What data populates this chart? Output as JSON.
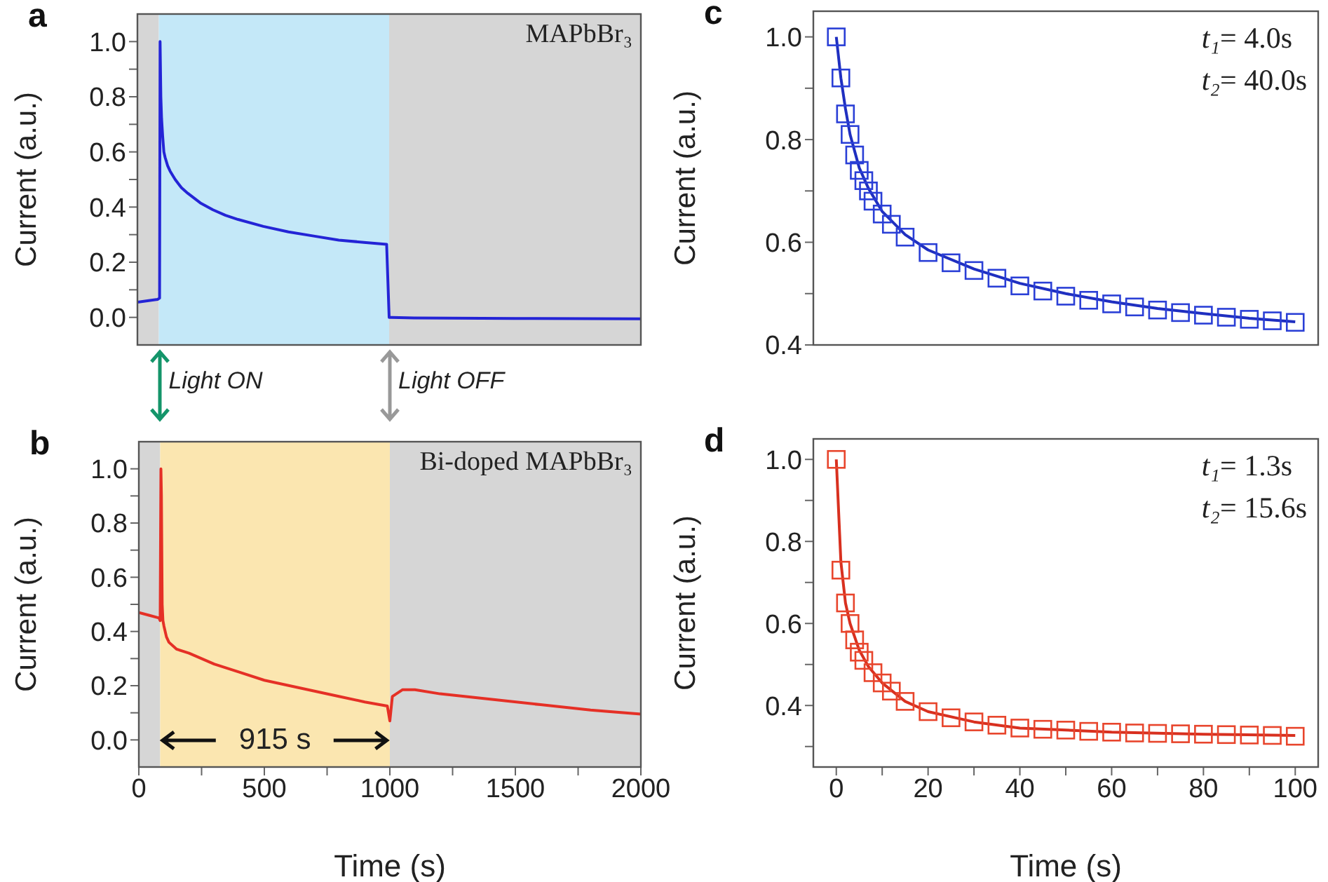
{
  "chart_data": [
    {
      "type": "line",
      "title": "a",
      "subtitle": "MAPbBr₃",
      "ylabel": "Current (a.u.)",
      "tick_labels": "y",
      "xlim": [
        0,
        2000
      ],
      "ylim": [
        -0.1,
        1.1
      ],
      "yticks": [
        {
          "value": 0,
          "label": "0.0"
        },
        {
          "value": 0.1,
          "label": null
        },
        0.2,
        {
          "value": 0.3,
          "label": null
        },
        0.4,
        {
          "value": 0.5,
          "label": null
        },
        0.6,
        {
          "value": 0.7,
          "label": null
        },
        0.8,
        {
          "value": 0.9,
          "label": null
        },
        {
          "value": 1,
          "label": "1.0"
        }
      ],
      "bands": [
        {
          "axis": "x",
          "from": 0,
          "to": 85,
          "color": "#d6d6d6"
        },
        {
          "axis": "x",
          "from": 85,
          "to": 1000,
          "color": "#c4e8f8"
        },
        {
          "axis": "x",
          "from": 1000,
          "to": 2000,
          "color": "#d6d6d6"
        }
      ],
      "x": [
        0,
        40,
        80,
        88,
        90,
        93,
        96,
        100,
        105,
        110,
        120,
        130,
        150,
        175,
        200,
        250,
        300,
        350,
        400,
        500,
        600,
        700,
        800,
        900,
        990,
        1000,
        1010,
        1100,
        1500,
        2000
      ],
      "series": [
        {
          "color": "#2424d6",
          "values": [
            0.055,
            0.06,
            0.065,
            0.07,
            1.0,
            0.8,
            0.72,
            0.66,
            0.6,
            0.58,
            0.55,
            0.53,
            0.5,
            0.47,
            0.45,
            0.415,
            0.39,
            0.37,
            0.355,
            0.33,
            0.31,
            0.295,
            0.28,
            0.272,
            0.265,
            0.0,
            0.0,
            -0.002,
            -0.004,
            -0.005
          ]
        }
      ]
    },
    {
      "type": "line",
      "title": "b",
      "subtitle": "Bi-doped MAPbBr₃",
      "xlabel": "Time (s)",
      "ylabel": "Current (a.u.)",
      "xlim": [
        0,
        2000
      ],
      "xticks": [
        0,
        {
          "value": 250,
          "label": null
        },
        500,
        {
          "value": 750,
          "label": null
        },
        1000,
        {
          "value": 1250,
          "label": null
        },
        1500,
        {
          "value": 1750,
          "label": null
        },
        2000
      ],
      "ylim": [
        -0.1,
        1.1
      ],
      "yticks": [
        {
          "value": 0,
          "label": "0.0"
        },
        {
          "value": 0.1,
          "label": null
        },
        0.2,
        {
          "value": 0.3,
          "label": null
        },
        0.4,
        {
          "value": 0.5,
          "label": null
        },
        0.6,
        {
          "value": 0.7,
          "label": null
        },
        0.8,
        {
          "value": 0.9,
          "label": null
        },
        {
          "value": 1,
          "label": "1.0"
        }
      ],
      "bands": [
        {
          "axis": "x",
          "from": 0,
          "to": 85,
          "color": "#d6d6d6"
        },
        {
          "axis": "x",
          "from": 85,
          "to": 1000,
          "color": "#fbe6b0",
          "label": "915 s"
        },
        {
          "axis": "x",
          "from": 1000,
          "to": 2000,
          "color": "#d6d6d6"
        }
      ],
      "annotations": [
        "Light ON",
        "Light OFF"
      ],
      "x": [
        0,
        40,
        80,
        85,
        88,
        90,
        93,
        96,
        100,
        110,
        120,
        150,
        200,
        300,
        400,
        500,
        600,
        700,
        800,
        900,
        990,
        1000,
        1010,
        1050,
        1100,
        1200,
        1400,
        1600,
        1800,
        2000
      ],
      "series": [
        {
          "color": "#e53026",
          "values": [
            0.47,
            0.46,
            0.45,
            0.44,
            1.0,
            0.9,
            0.5,
            0.44,
            0.42,
            0.38,
            0.36,
            0.335,
            0.32,
            0.28,
            0.25,
            0.22,
            0.2,
            0.18,
            0.16,
            0.14,
            0.125,
            0.07,
            0.16,
            0.185,
            0.185,
            0.17,
            0.15,
            0.13,
            0.11,
            0.095
          ]
        }
      ]
    },
    {
      "type": "scatter",
      "title": "c",
      "ylabel": "Current (a.u.)",
      "tick_labels": "y",
      "annotations": [
        "t₁= 4.0s",
        "t₂= 40.0s"
      ],
      "xlim": [
        -5,
        105
      ],
      "ylim": [
        0.4,
        1.05
      ],
      "yticks": [
        0.4,
        {
          "value": 0.5,
          "label": null
        },
        0.6,
        {
          "value": 0.7,
          "label": null
        },
        0.8,
        {
          "value": 0.9,
          "label": null
        },
        {
          "value": 1,
          "label": "1.0"
        }
      ],
      "series": [
        {
          "marker": "square",
          "color": "#2a3fd6",
          "x": [
            0,
            1,
            2,
            3,
            4,
            5,
            6,
            7,
            8,
            10,
            12,
            15,
            20,
            25,
            30,
            35,
            40,
            45,
            50,
            55,
            60,
            65,
            70,
            75,
            80,
            85,
            90,
            95,
            100
          ],
          "values": [
            1.0,
            0.92,
            0.85,
            0.81,
            0.77,
            0.74,
            0.72,
            0.7,
            0.68,
            0.655,
            0.635,
            0.61,
            0.58,
            0.56,
            0.545,
            0.53,
            0.515,
            0.505,
            0.495,
            0.487,
            0.48,
            0.474,
            0.468,
            0.463,
            0.458,
            0.454,
            0.45,
            0.447,
            0.444
          ]
        },
        {
          "type": "line",
          "color": "#1f2fc0",
          "x": [
            0,
            1,
            2,
            3,
            5,
            7,
            10,
            15,
            20,
            30,
            40,
            50,
            60,
            70,
            80,
            90,
            100
          ],
          "values": [
            1.0,
            0.92,
            0.86,
            0.81,
            0.745,
            0.705,
            0.66,
            0.615,
            0.585,
            0.548,
            0.52,
            0.5,
            0.484,
            0.471,
            0.461,
            0.452,
            0.445
          ]
        }
      ]
    },
    {
      "type": "scatter",
      "title": "d",
      "xlabel": "Time (s)",
      "ylabel": "Current (a.u.)",
      "annotations": [
        "t₁= 1.3s",
        "t₂= 15.6s"
      ],
      "xlim": [
        -5,
        105
      ],
      "xticks": [
        0,
        {
          "value": 10,
          "label": null
        },
        20,
        {
          "value": 30,
          "label": null
        },
        40,
        {
          "value": 50,
          "label": null
        },
        60,
        {
          "value": 70,
          "label": null
        },
        80,
        {
          "value": 90,
          "label": null
        },
        100
      ],
      "ylim": [
        0.25,
        1.05
      ],
      "yticks": [
        {
          "value": 0.3,
          "label": null
        },
        0.4,
        {
          "value": 0.5,
          "label": null
        },
        0.6,
        {
          "value": 0.7,
          "label": null
        },
        0.8,
        {
          "value": 0.9,
          "label": null
        },
        {
          "value": 1,
          "label": "1.0"
        }
      ],
      "series": [
        {
          "marker": "square",
          "color": "#e8452c",
          "x": [
            0,
            1,
            2,
            3,
            4,
            5,
            6,
            8,
            10,
            12,
            15,
            20,
            25,
            30,
            35,
            40,
            45,
            50,
            55,
            60,
            65,
            70,
            75,
            80,
            85,
            90,
            95,
            100
          ],
          "values": [
            1.0,
            0.73,
            0.65,
            0.6,
            0.56,
            0.53,
            0.51,
            0.48,
            0.455,
            0.435,
            0.41,
            0.385,
            0.37,
            0.36,
            0.352,
            0.345,
            0.342,
            0.34,
            0.337,
            0.335,
            0.333,
            0.332,
            0.331,
            0.33,
            0.329,
            0.328,
            0.327,
            0.325
          ]
        },
        {
          "type": "line",
          "color": "#d8301f",
          "x": [
            0,
            1,
            2,
            3,
            5,
            7,
            10,
            15,
            20,
            30,
            40,
            50,
            60,
            80,
            100
          ],
          "values": [
            1.0,
            0.75,
            0.65,
            0.6,
            0.535,
            0.495,
            0.455,
            0.41,
            0.385,
            0.36,
            0.345,
            0.34,
            0.335,
            0.33,
            0.327
          ]
        }
      ]
    }
  ]
}
